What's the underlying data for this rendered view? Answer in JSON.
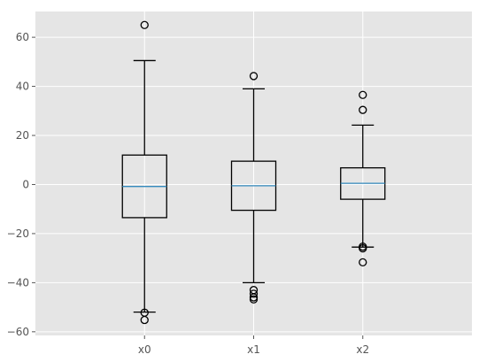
{
  "chart_data": {
    "type": "box",
    "title": "",
    "xlabel": "",
    "ylabel": "",
    "categories": [
      "x0",
      "x1",
      "x2"
    ],
    "ylim": [
      -61.5,
      70.5
    ],
    "yticks": [
      -60,
      -40,
      -20,
      0,
      20,
      40,
      60
    ],
    "grid": true,
    "legend": "none",
    "boxes": [
      {
        "name": "x0",
        "whisker_low": -52,
        "q1": -13.5,
        "median": -0.8,
        "q3": 12,
        "whisker_high": 50.5,
        "fliers": [
          65,
          -52.2,
          -55.2
        ]
      },
      {
        "name": "x1",
        "whisker_low": -40,
        "q1": -10.5,
        "median": -0.5,
        "q3": 9.5,
        "whisker_high": 39,
        "fliers": [
          44.2,
          -43,
          -44.5,
          -46,
          -46.8
        ]
      },
      {
        "name": "x2",
        "whisker_low": -25.5,
        "q1": -6,
        "median": 0.5,
        "q3": 6.8,
        "whisker_high": 24.2,
        "fliers": [
          36.5,
          30.4,
          -25.3,
          -26,
          -31.7
        ]
      }
    ],
    "colors": {
      "background": "#e5e5e5",
      "grid": "#ffffff",
      "box": "#000000",
      "median": "#348abd",
      "tick_text": "#555555"
    }
  }
}
